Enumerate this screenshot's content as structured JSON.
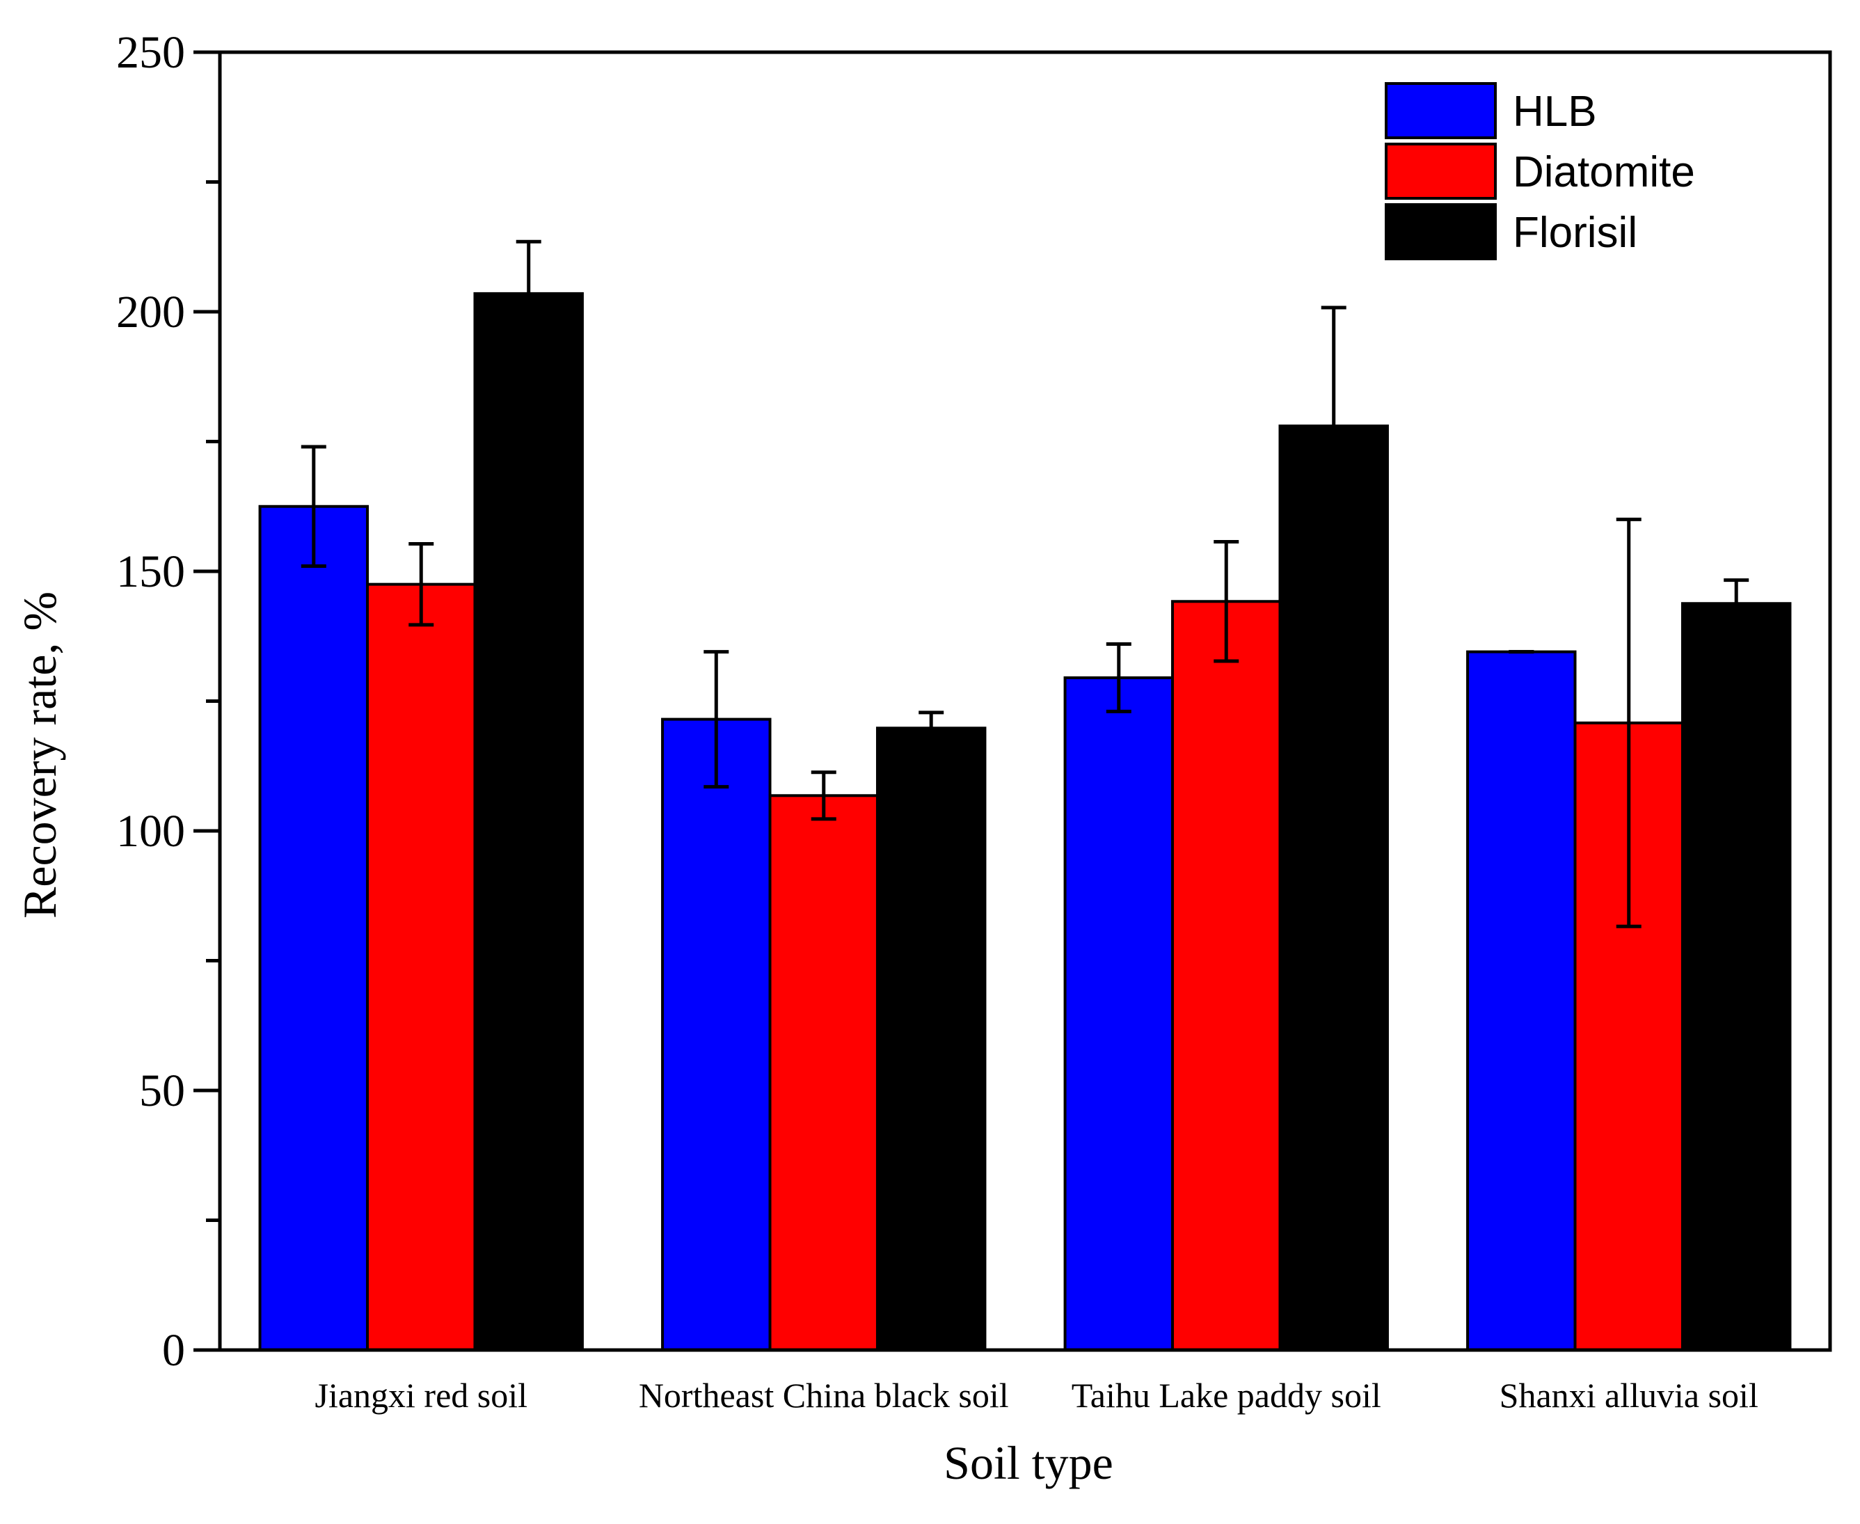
{
  "chart_data": {
    "type": "bar",
    "xlabel": "Soil type",
    "ylabel": "Recovery rate, %",
    "ylim": [
      0,
      250
    ],
    "yticks": [
      0,
      50,
      100,
      150,
      200,
      250
    ],
    "ytick_labels": [
      "0",
      "50",
      "100",
      "150",
      "200",
      "250"
    ],
    "categories": [
      "Jiangxi red soil",
      "Northeast China black soil",
      "Taihu Lake paddy soil",
      "Shanxi alluvia soil"
    ],
    "series": [
      {
        "name": "HLB",
        "color": "#0000ff",
        "values": [
          162.5,
          121.5,
          129.5,
          134.5
        ],
        "errors": [
          11.5,
          13.0,
          6.5,
          0.0
        ]
      },
      {
        "name": "Diatomite",
        "color": "#ff0000",
        "values": [
          147.5,
          106.8,
          144.2,
          120.8
        ],
        "errors": [
          7.8,
          4.5,
          11.5,
          39.2
        ]
      },
      {
        "name": "Florisil",
        "color": "#000000",
        "values": [
          203.5,
          119.8,
          178.0,
          143.8
        ],
        "errors": [
          10.0,
          3.0,
          22.8,
          4.5
        ]
      }
    ],
    "legend_position": "top-right",
    "grid": false
  }
}
